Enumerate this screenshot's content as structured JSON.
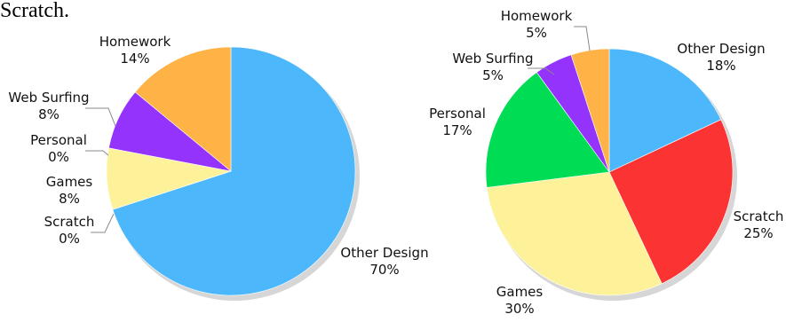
{
  "caption": "Scratch.",
  "chart_data": [
    {
      "type": "pie",
      "categories": [
        "Other Design",
        "Scratch",
        "Games",
        "Personal",
        "Web Surfing",
        "Homework"
      ],
      "values": [
        70,
        0,
        8,
        0,
        8,
        14
      ],
      "labels": [
        "70%",
        "0%",
        "8%",
        "0%",
        "8%",
        "14%"
      ],
      "colors": [
        "#4cb8fb",
        "#fb3333",
        "#fdf29a",
        "#00dd55",
        "#9333fb",
        "#ffb347"
      ],
      "direction": "clockwise from top",
      "legend": "none",
      "shadow": true
    },
    {
      "type": "pie",
      "categories": [
        "Other Design",
        "Scratch",
        "Games",
        "Personal",
        "Web Surfing",
        "Homework"
      ],
      "values": [
        18,
        25,
        30,
        17,
        5,
        5
      ],
      "labels": [
        "18%",
        "25%",
        "30%",
        "17%",
        "5%",
        "5%"
      ],
      "colors": [
        "#4cb8fb",
        "#fb3333",
        "#fdf29a",
        "#00dd55",
        "#9333fb",
        "#ffb347"
      ],
      "direction": "clockwise from top",
      "legend": "none",
      "shadow": true
    }
  ]
}
